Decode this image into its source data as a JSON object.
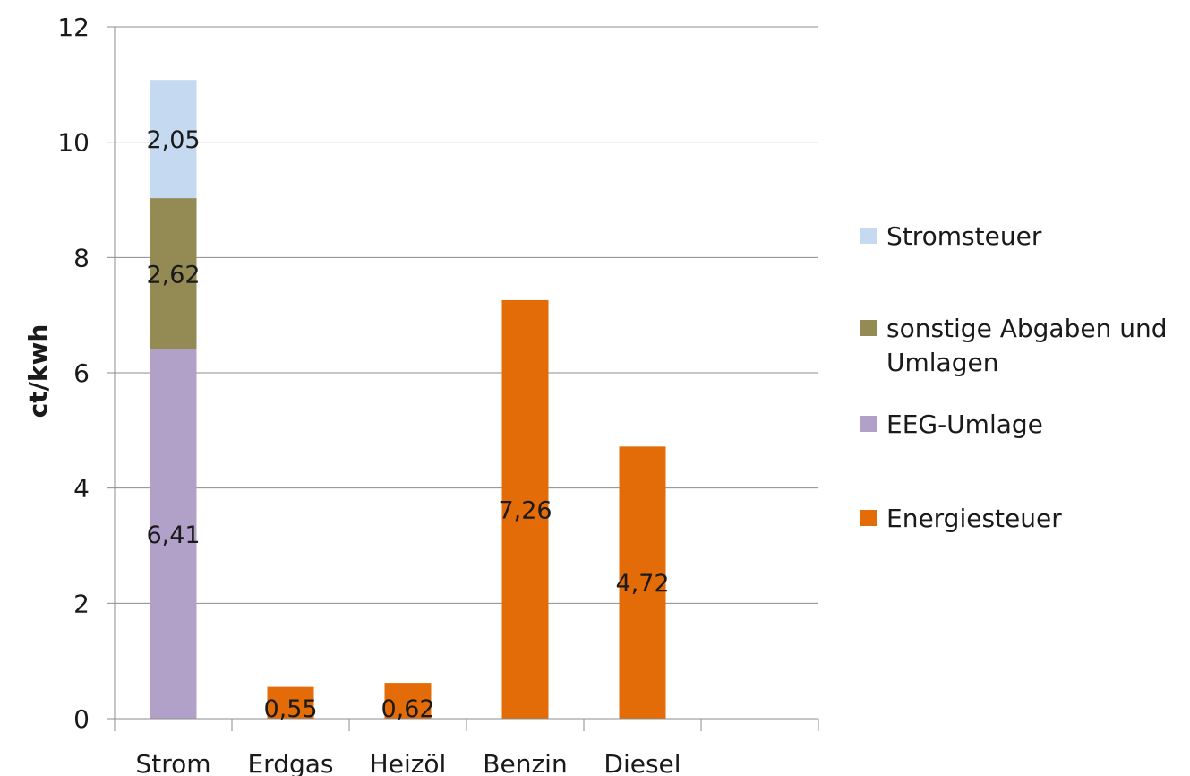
{
  "chart_data": {
    "type": "bar",
    "stacked": true,
    "title": "",
    "xlabel": "",
    "ylabel": "ct/kwh",
    "ylim": [
      0,
      12
    ],
    "yticks": [
      0,
      2,
      4,
      6,
      8,
      10,
      12
    ],
    "categories": [
      "Strom",
      "Erdgas",
      "Heizöl",
      "Benzin",
      "Diesel",
      ""
    ],
    "grid": true,
    "legend_position": "right",
    "series": [
      {
        "name": "Energiesteuer",
        "color": "#E36C09",
        "values": [
          0,
          0.55,
          0.62,
          7.26,
          4.72,
          0
        ],
        "labels": [
          "",
          "0,55",
          "0,62",
          "7,26",
          "4,72",
          ""
        ]
      },
      {
        "name": "EEG-Umlage",
        "color": "#B1A0C7",
        "values": [
          6.41,
          0,
          0,
          0,
          0,
          0
        ],
        "labels": [
          "6,41",
          "",
          "",
          "",
          "",
          ""
        ]
      },
      {
        "name": "sonstige Abgaben und Umlagen",
        "color": "#948A54",
        "values": [
          2.62,
          0,
          0,
          0,
          0,
          0
        ],
        "labels": [
          "2,62",
          "",
          "",
          "",
          "",
          ""
        ]
      },
      {
        "name": "Stromsteuer",
        "color": "#C5D9F1",
        "values": [
          2.05,
          0,
          0,
          0,
          0,
          0
        ],
        "labels": [
          "2,05",
          "",
          "",
          "",
          "",
          ""
        ]
      }
    ],
    "legend_order": [
      "Stromsteuer",
      "sonstige Abgaben und Umlagen",
      "EEG-Umlage",
      "Energiesteuer"
    ]
  }
}
